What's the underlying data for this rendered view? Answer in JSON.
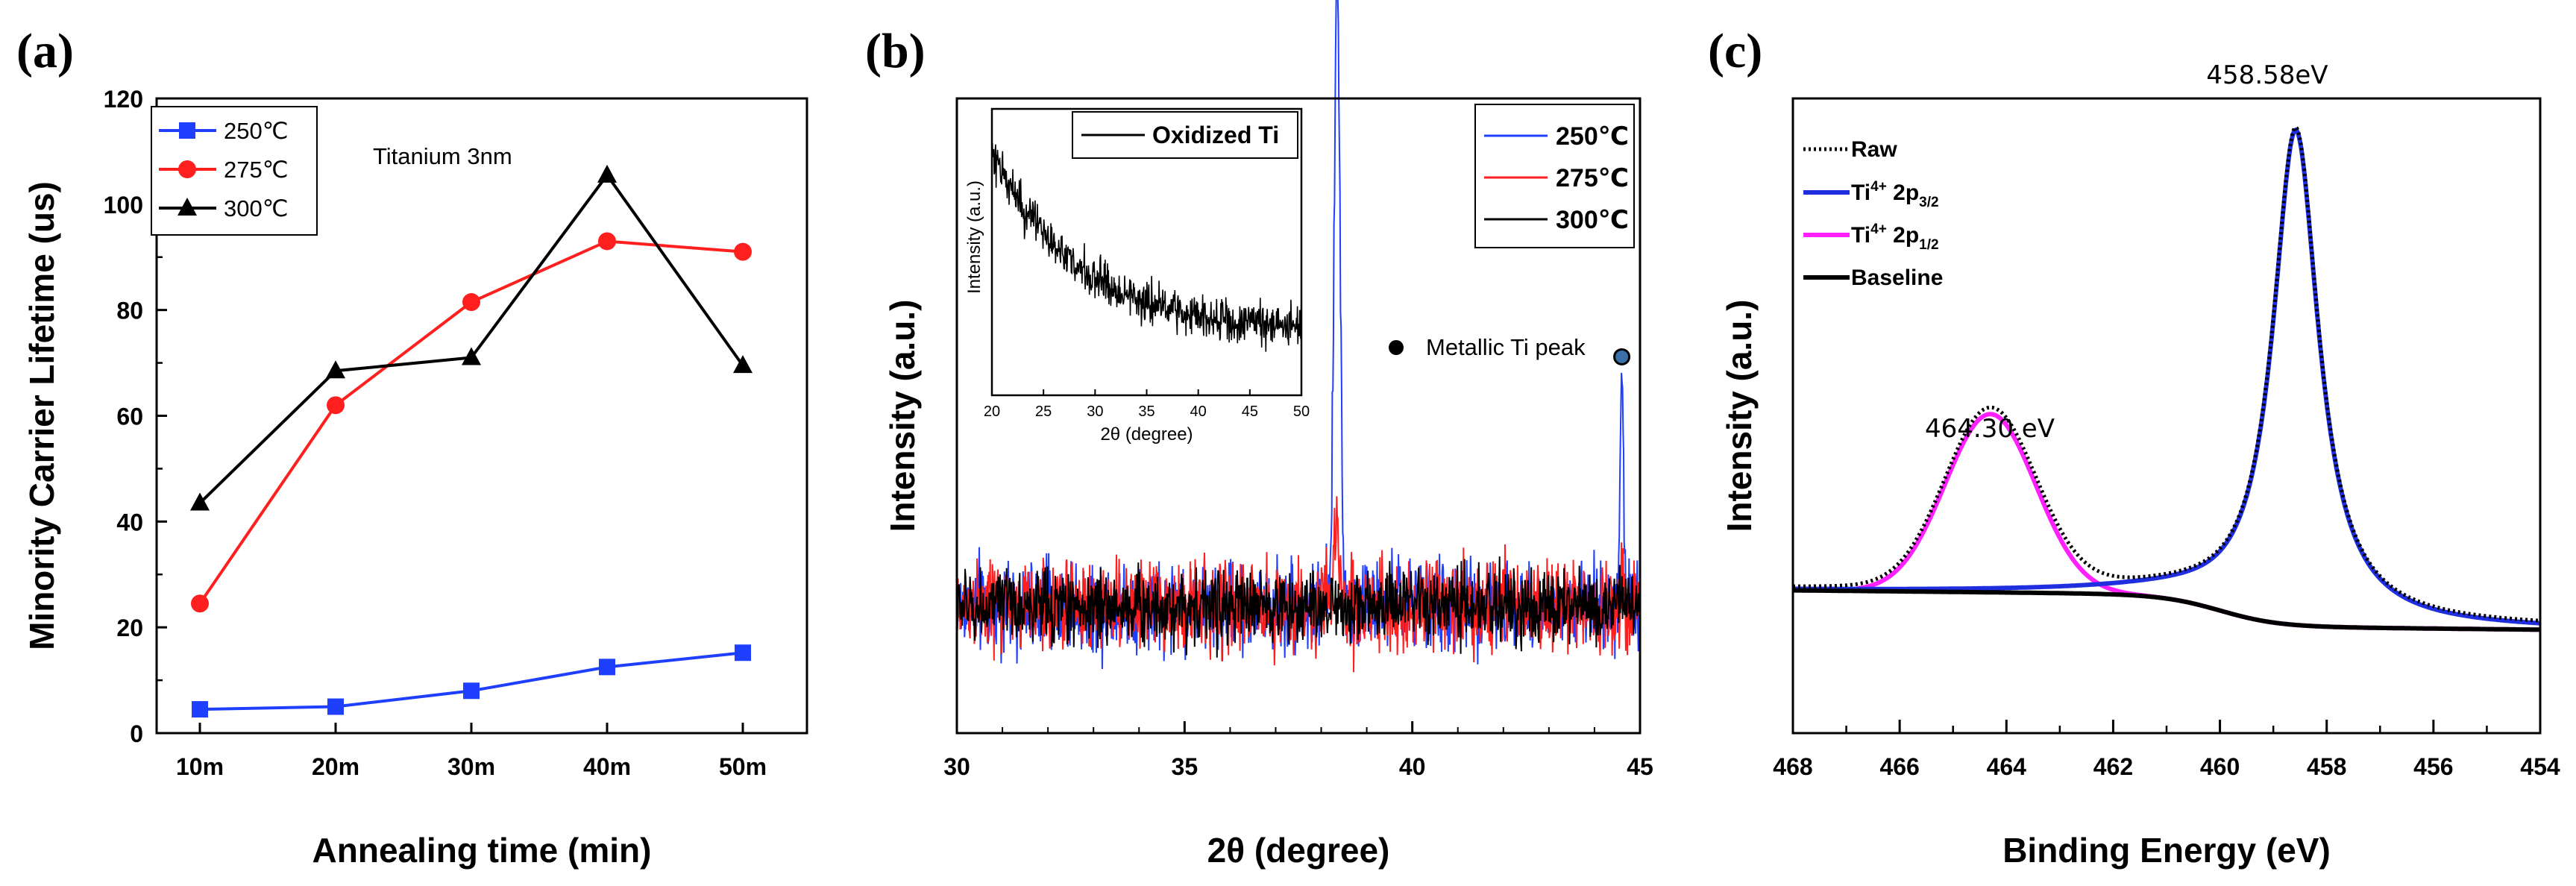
{
  "chart_data": [
    {
      "panel": "(a)",
      "type": "line",
      "categories": [
        "10m",
        "20m",
        "30m",
        "40m",
        "50m"
      ],
      "series": [
        {
          "name": "250℃",
          "color": "#1f3fff",
          "marker": "square",
          "values": [
            4.5,
            5.0,
            8.0,
            12.5,
            15.2
          ]
        },
        {
          "name": "275℃",
          "color": "#ff1f1f",
          "marker": "circle",
          "values": [
            24.5,
            62.0,
            81.5,
            93.0,
            91.0
          ]
        },
        {
          "name": "300℃",
          "color": "#000000",
          "marker": "triangle",
          "values": [
            43.5,
            68.5,
            71.0,
            105.5,
            69.5
          ]
        }
      ],
      "annotation": "Titanium 3nm",
      "xlabel": "Annealing time (min)",
      "ylabel": "Minority Carrier Lifetime (us)",
      "ylim": [
        0,
        120
      ],
      "yticks": [
        0,
        20,
        40,
        60,
        80,
        100,
        120
      ],
      "legend": "top-left",
      "grid": false
    },
    {
      "panel": "(b)",
      "type": "line",
      "xlabel": "2θ (degree)",
      "ylabel": "Intensity (a.u.)",
      "xlim": [
        30,
        45
      ],
      "xticks": [
        30,
        35,
        40,
        45
      ],
      "series": [
        {
          "name": "250℃",
          "color": "#1f3fff",
          "baseline": 0.2,
          "noise": 0.05,
          "peaks": [
            {
              "x": 38.35,
              "height": 1.0,
              "width": 0.09
            },
            {
              "x": 44.6,
              "height": 0.36,
              "width": 0.06
            }
          ]
        },
        {
          "name": "275℃",
          "color": "#ff1f1f",
          "baseline": 0.2,
          "noise": 0.05,
          "peaks": [
            {
              "x": 38.35,
              "height": 0.14,
              "width": 0.08
            },
            {
              "x": 44.6,
              "height": 0.06,
              "width": 0.06
            }
          ]
        },
        {
          "name": "300℃",
          "color": "#000000",
          "baseline": 0.2,
          "noise": 0.04,
          "peaks": []
        }
      ],
      "marker_label": "Metallic Ti peak",
      "legend": "top-right",
      "inset": {
        "legend": "Oxidized Ti",
        "xlabel": "2θ (degree)",
        "ylabel": "Intensity (a.u.)",
        "xlim": [
          20,
          50
        ],
        "xticks": [
          20,
          25,
          30,
          35,
          40,
          45,
          50
        ],
        "color": "#000000"
      }
    },
    {
      "panel": "(c)",
      "type": "line",
      "xlabel": "Binding Energy (eV)",
      "ylabel": "Intensity (a.u.)",
      "xlim": [
        468,
        454
      ],
      "xticks": [
        468,
        466,
        464,
        462,
        460,
        458,
        456,
        454
      ],
      "series": [
        {
          "name": "Raw",
          "legend_text": "Raw",
          "color": "#000000",
          "style": "dotted"
        },
        {
          "name": "Ti4+ 2p3/2",
          "legend_text": "Ti",
          "sup": "4+",
          "rest": " 2p",
          "sub": "3/2",
          "color": "#1f2fe0",
          "peak": {
            "x": 458.58,
            "height": 1.0,
            "fwhm": 1.05
          }
        },
        {
          "name": "Ti4+ 2p1/2",
          "legend_text": "Ti",
          "sup": "4+",
          "rest": " 2p",
          "sub": "1/2",
          "color": "#ff1fff",
          "peak": {
            "x": 464.3,
            "height": 0.36,
            "fwhm": 2.0
          }
        },
        {
          "name": "Baseline",
          "legend_text": "Baseline",
          "color": "#000000",
          "style": "solid"
        }
      ],
      "peak_labels": [
        "458.58eV",
        "464.30 eV"
      ],
      "legend": "top-left"
    }
  ]
}
